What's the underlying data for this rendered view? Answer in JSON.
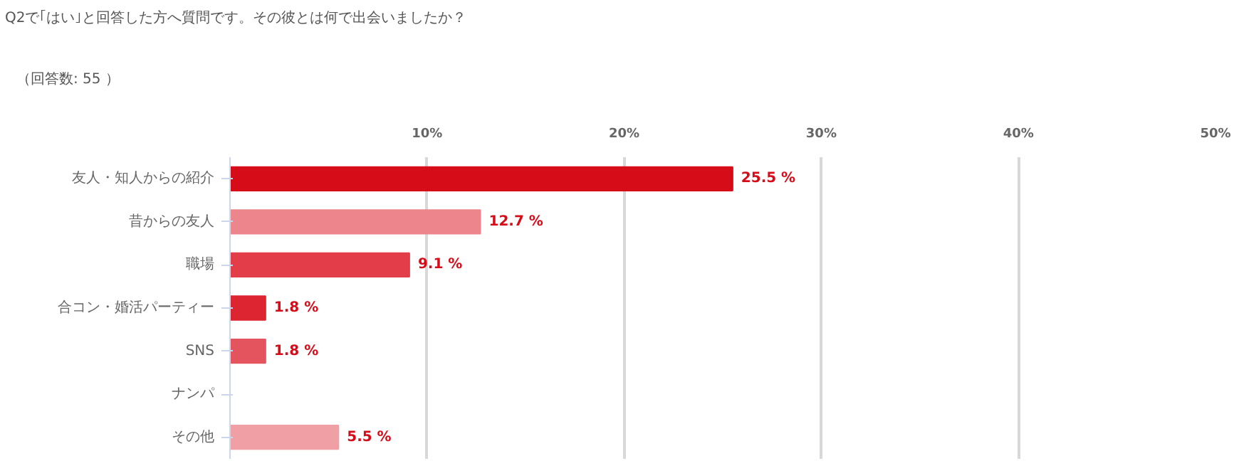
{
  "chart_data": {
    "type": "bar",
    "orientation": "horizontal",
    "title": "Q2で｢はい｣と回答した方へ質問です。その彼とは何で出会いましたか？",
    "subtitle": "（回答数: 55 ）",
    "categories": [
      "友人・知人からの紹介",
      "昔からの友人",
      "職場",
      "合コン・婚活パーティー",
      "SNS",
      "ナンパ",
      "その他"
    ],
    "values": [
      25.5,
      12.7,
      9.1,
      1.8,
      1.8,
      0,
      5.5
    ],
    "value_labels": [
      "25.5 %",
      "12.7 %",
      "9.1 %",
      "1.8 %",
      "1.8 %",
      null,
      "5.5 %"
    ],
    "colors": [
      "#d70c19",
      "#ec868c",
      "#e23d49",
      "#dc2530",
      "#e4545e",
      "#e4545e",
      "#f0a0a5"
    ],
    "xlim": [
      0,
      50
    ],
    "xticks": [
      {
        "value": 0,
        "label": null
      },
      {
        "value": 10,
        "label": "10%"
      },
      {
        "value": 20,
        "label": "20%"
      },
      {
        "value": 30,
        "label": "30%"
      },
      {
        "value": 40,
        "label": "40%"
      },
      {
        "value": 50,
        "label": "50%"
      }
    ],
    "grid": "x"
  }
}
